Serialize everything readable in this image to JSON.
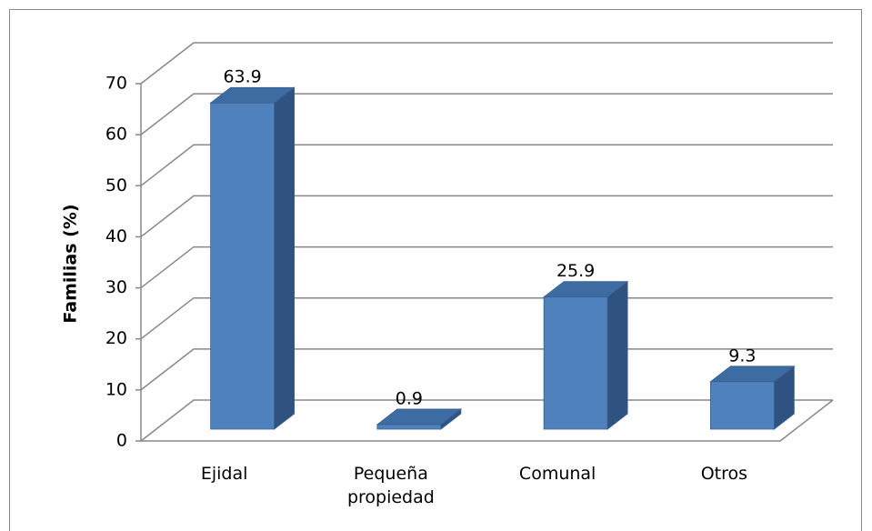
{
  "chart_data": {
    "type": "bar3d",
    "y_axis_label": "Familias (%)",
    "categories": [
      "Ejidal",
      "Pequeña propiedad",
      "Comunal",
      "Otros"
    ],
    "values": [
      63.9,
      0.9,
      25.9,
      9.3
    ],
    "color": "#4f81bd",
    "ylim": [
      0,
      70
    ],
    "yticks": [
      0,
      10,
      20,
      30,
      40,
      50,
      60,
      70
    ],
    "grid": true
  }
}
